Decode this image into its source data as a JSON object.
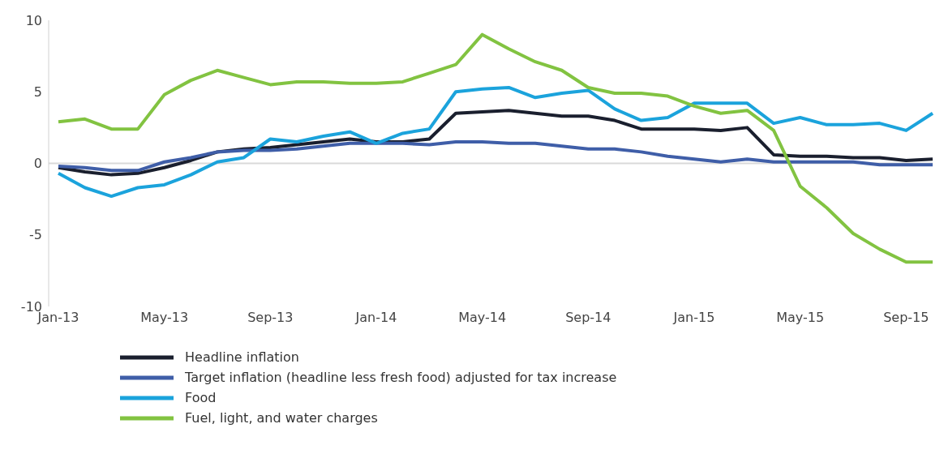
{
  "chart_data": {
    "type": "line",
    "categories": [
      "Jan-13",
      null,
      null,
      null,
      "May-13",
      null,
      null,
      null,
      "Sep-13",
      null,
      null,
      null,
      "Jan-14",
      null,
      null,
      null,
      "May-14",
      null,
      null,
      null,
      "Sep-14",
      null,
      null,
      null,
      "Jan-15",
      null,
      null,
      null,
      "May-15",
      null,
      null,
      null,
      "Sep-15",
      null
    ],
    "series": [
      {
        "name": "Headline inflation",
        "color": "#1a1f2e",
        "values": [
          -0.3,
          -0.6,
          -0.8,
          -0.7,
          -0.3,
          0.2,
          0.8,
          1.0,
          1.1,
          1.3,
          1.5,
          1.7,
          1.5,
          1.5,
          1.7,
          3.5,
          3.6,
          3.7,
          3.5,
          3.3,
          3.3,
          3.0,
          2.4,
          2.4,
          2.4,
          2.3,
          2.5,
          0.6,
          0.5,
          0.5,
          0.4,
          0.4,
          0.2,
          0.3
        ]
      },
      {
        "name": "Target inflation (headline less fresh food) adjusted for tax increase",
        "color": "#3f5ea8",
        "values": [
          -0.2,
          -0.3,
          -0.5,
          -0.5,
          0.1,
          0.4,
          0.8,
          0.9,
          0.9,
          1.0,
          1.2,
          1.4,
          1.4,
          1.4,
          1.3,
          1.5,
          1.5,
          1.4,
          1.4,
          1.2,
          1.0,
          1.0,
          0.8,
          0.5,
          0.3,
          0.1,
          0.3,
          0.1,
          0.1,
          0.1,
          0.1,
          -0.1,
          -0.1,
          -0.1
        ]
      },
      {
        "name": "Food",
        "color": "#1ba3dc",
        "values": [
          -0.7,
          -1.7,
          -2.3,
          -1.7,
          -1.5,
          -0.8,
          0.1,
          0.4,
          1.7,
          1.5,
          1.9,
          2.2,
          1.4,
          2.1,
          2.4,
          5.0,
          5.2,
          5.3,
          4.6,
          4.9,
          5.1,
          3.8,
          3.0,
          3.2,
          4.2,
          4.2,
          4.2,
          2.8,
          3.2,
          2.7,
          2.7,
          2.8,
          2.3,
          3.5
        ]
      },
      {
        "name": "Fuel, light, and water charges",
        "color": "#82c341",
        "values": [
          2.9,
          3.1,
          2.4,
          2.4,
          4.8,
          5.8,
          6.5,
          6.0,
          5.5,
          5.7,
          5.7,
          5.6,
          5.6,
          5.7,
          6.3,
          6.9,
          9.0,
          8.0,
          7.1,
          6.5,
          5.3,
          4.9,
          4.9,
          4.7,
          4.0,
          3.5,
          3.7,
          2.3,
          -1.6,
          -3.1,
          -4.9,
          -6.0,
          -6.9,
          -6.9
        ]
      }
    ],
    "ylim": [
      -10,
      10
    ],
    "yticks": [
      -10,
      -5,
      0,
      5,
      10
    ],
    "ref_lines": [
      {
        "axis": "y",
        "value": 0,
        "color": "#d9d9d9"
      }
    ],
    "grid": false,
    "legend": "bottom",
    "line_style": "solid",
    "marker": "none"
  }
}
